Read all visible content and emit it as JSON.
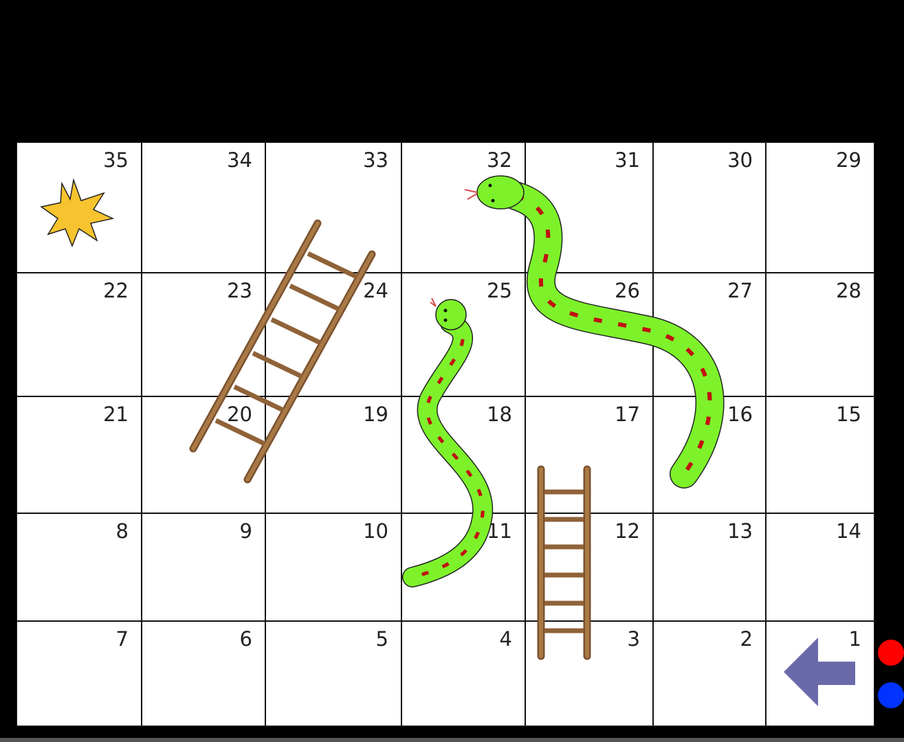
{
  "board": {
    "rows": [
      [
        "35",
        "34",
        "33",
        "32",
        "31",
        "30",
        "29"
      ],
      [
        "22",
        "23",
        "24",
        "25",
        "26",
        "27",
        "28"
      ],
      [
        "21",
        "20",
        "19",
        "18",
        "17",
        "16",
        "15"
      ],
      [
        "8",
        "9",
        "10",
        "11",
        "12",
        "13",
        "14"
      ],
      [
        "7",
        "6",
        "5",
        "4",
        "3",
        "2",
        "1"
      ]
    ]
  },
  "colors": {
    "snake_body": "#7df22a",
    "snake_stripe": "#c01010",
    "ladder": "#9a6a3c",
    "star": "#f7c32e",
    "arrow": "#6a6aaa",
    "player_red": "#ff0000",
    "player_blue": "#0033ff"
  },
  "icons": {
    "finish": "star-icon",
    "start": "arrow-left-icon"
  },
  "players": [
    {
      "name": "red",
      "color": "#ff0000"
    },
    {
      "name": "blue",
      "color": "#0033ff"
    }
  ]
}
